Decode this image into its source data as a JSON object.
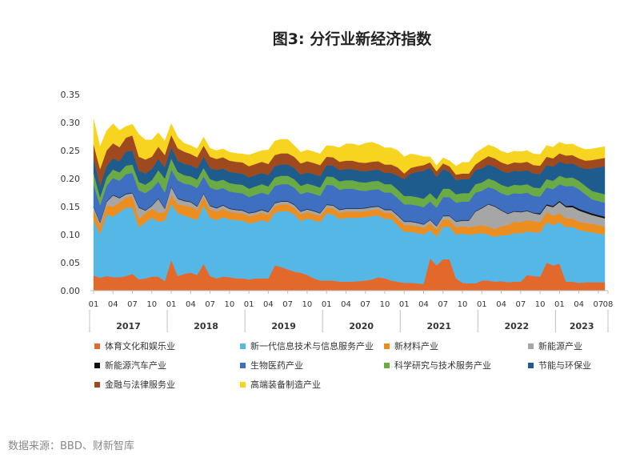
{
  "chart_data": {
    "type": "area",
    "stacked": true,
    "title": "图3: 分行业新经济指数",
    "ylim": [
      0,
      0.35
    ],
    "yticks": [
      "0.00",
      "0.05",
      "0.10",
      "0.15",
      "0.20",
      "0.25",
      "0.30",
      "0.35"
    ],
    "month_tick_labels": [
      "01",
      "04",
      "07",
      "10",
      "01",
      "04",
      "07",
      "10",
      "01",
      "04",
      "07",
      "10",
      "01",
      "04",
      "07",
      "10",
      "01",
      "04",
      "07",
      "10",
      "01",
      "04",
      "07",
      "10",
      "01",
      "04",
      "07",
      "08"
    ],
    "years": [
      "2017",
      "2018",
      "2019",
      "2020",
      "2021",
      "2022",
      "2023"
    ],
    "x_start": "2017-01",
    "x_end": "2023-08",
    "series": [
      {
        "name": "体育文化和娱乐业",
        "color": "#e2682b",
        "values": [
          0.027,
          0.023,
          0.026,
          0.024,
          0.024,
          0.026,
          0.03,
          0.02,
          0.022,
          0.025,
          0.025,
          0.017,
          0.055,
          0.026,
          0.03,
          0.032,
          0.028,
          0.048,
          0.026,
          0.022,
          0.025,
          0.024,
          0.022,
          0.022,
          0.02,
          0.022,
          0.022,
          0.022,
          0.045,
          0.042,
          0.038,
          0.034,
          0.032,
          0.028,
          0.022,
          0.018,
          0.018,
          0.018,
          0.016,
          0.016,
          0.016,
          0.017,
          0.018,
          0.02,
          0.024,
          0.022,
          0.018,
          0.016,
          0.014,
          0.014,
          0.013,
          0.012,
          0.058,
          0.045,
          0.056,
          0.056,
          0.022,
          0.014,
          0.013,
          0.013,
          0.018,
          0.018,
          0.016,
          0.017,
          0.015,
          0.016,
          0.016,
          0.028,
          0.026,
          0.025,
          0.05,
          0.045,
          0.048,
          0.016,
          0.016,
          0.014,
          0.015,
          0.015,
          0.015,
          0.015
        ]
      },
      {
        "name": "新一代信息技术与信息服务产业",
        "color": "#55b7e6",
        "values": [
          0.098,
          0.078,
          0.11,
          0.108,
          0.116,
          0.122,
          0.118,
          0.093,
          0.1,
          0.105,
          0.098,
          0.108,
          0.1,
          0.112,
          0.104,
          0.098,
          0.098,
          0.104,
          0.104,
          0.104,
          0.106,
          0.103,
          0.104,
          0.103,
          0.1,
          0.1,
          0.104,
          0.1,
          0.094,
          0.1,
          0.104,
          0.102,
          0.092,
          0.101,
          0.104,
          0.104,
          0.12,
          0.118,
          0.112,
          0.114,
          0.114,
          0.113,
          0.113,
          0.113,
          0.11,
          0.106,
          0.11,
          0.1,
          0.091,
          0.091,
          0.09,
          0.088,
          0.05,
          0.051,
          0.058,
          0.058,
          0.078,
          0.088,
          0.087,
          0.088,
          0.085,
          0.082,
          0.08,
          0.082,
          0.084,
          0.087,
          0.086,
          0.078,
          0.078,
          0.079,
          0.072,
          0.072,
          0.074,
          0.097,
          0.098,
          0.094,
          0.091,
          0.089,
          0.087,
          0.085
        ]
      },
      {
        "name": "新材料产业",
        "color": "#ec8e1f",
        "values": [
          0.018,
          0.015,
          0.016,
          0.018,
          0.017,
          0.018,
          0.02,
          0.015,
          0.016,
          0.016,
          0.016,
          0.015,
          0.015,
          0.016,
          0.018,
          0.02,
          0.018,
          0.015,
          0.015,
          0.015,
          0.015,
          0.014,
          0.013,
          0.013,
          0.013,
          0.013,
          0.013,
          0.013,
          0.012,
          0.012,
          0.012,
          0.012,
          0.012,
          0.011,
          0.011,
          0.011,
          0.01,
          0.011,
          0.011,
          0.011,
          0.011,
          0.011,
          0.011,
          0.011,
          0.011,
          0.011,
          0.011,
          0.012,
          0.012,
          0.012,
          0.012,
          0.012,
          0.012,
          0.013,
          0.013,
          0.013,
          0.013,
          0.013,
          0.013,
          0.014,
          0.014,
          0.014,
          0.014,
          0.016,
          0.018,
          0.02,
          0.02,
          0.02,
          0.02,
          0.018,
          0.018,
          0.017,
          0.016,
          0.016,
          0.015,
          0.015,
          0.015,
          0.015,
          0.015,
          0.014
        ]
      },
      {
        "name": "新能源产业",
        "color": "#a6a6a6",
        "values": [
          0.006,
          0.005,
          0.006,
          0.02,
          0.008,
          0.006,
          0.006,
          0.02,
          0.005,
          0.005,
          0.025,
          0.006,
          0.015,
          0.01,
          0.008,
          0.008,
          0.006,
          0.006,
          0.006,
          0.006,
          0.006,
          0.005,
          0.005,
          0.005,
          0.005,
          0.005,
          0.005,
          0.005,
          0.005,
          0.005,
          0.005,
          0.005,
          0.005,
          0.005,
          0.005,
          0.005,
          0.005,
          0.005,
          0.005,
          0.005,
          0.005,
          0.005,
          0.005,
          0.005,
          0.005,
          0.005,
          0.005,
          0.006,
          0.006,
          0.006,
          0.006,
          0.006,
          0.006,
          0.006,
          0.006,
          0.006,
          0.01,
          0.01,
          0.012,
          0.026,
          0.03,
          0.04,
          0.04,
          0.028,
          0.02,
          0.018,
          0.018,
          0.016,
          0.014,
          0.014,
          0.012,
          0.015,
          0.02,
          0.02,
          0.02,
          0.02,
          0.018,
          0.016,
          0.015,
          0.015
        ]
      },
      {
        "name": "新能源汽车产业",
        "color": "#111111",
        "values": [
          0.001,
          0.001,
          0.001,
          0.001,
          0.001,
          0.001,
          0.001,
          0.001,
          0.001,
          0.001,
          0.001,
          0.001,
          0.001,
          0.001,
          0.001,
          0.001,
          0.001,
          0.001,
          0.001,
          0.001,
          0.001,
          0.001,
          0.001,
          0.001,
          0.001,
          0.001,
          0.001,
          0.001,
          0.001,
          0.001,
          0.001,
          0.001,
          0.001,
          0.001,
          0.001,
          0.001,
          0.001,
          0.001,
          0.001,
          0.001,
          0.001,
          0.001,
          0.001,
          0.001,
          0.001,
          0.001,
          0.001,
          0.001,
          0.001,
          0.001,
          0.001,
          0.001,
          0.001,
          0.001,
          0.001,
          0.001,
          0.001,
          0.001,
          0.001,
          0.001,
          0.001,
          0.001,
          0.001,
          0.001,
          0.001,
          0.001,
          0.001,
          0.001,
          0.001,
          0.002,
          0.002,
          0.002,
          0.002,
          0.002,
          0.003,
          0.003,
          0.003,
          0.003,
          0.003,
          0.003
        ]
      },
      {
        "name": "生物医药产业",
        "color": "#3f6fc1",
        "values": [
          0.04,
          0.03,
          0.028,
          0.03,
          0.03,
          0.035,
          0.035,
          0.03,
          0.03,
          0.03,
          0.03,
          0.028,
          0.03,
          0.032,
          0.03,
          0.03,
          0.032,
          0.03,
          0.032,
          0.032,
          0.03,
          0.03,
          0.03,
          0.03,
          0.028,
          0.03,
          0.03,
          0.03,
          0.03,
          0.03,
          0.03,
          0.03,
          0.03,
          0.03,
          0.03,
          0.03,
          0.035,
          0.035,
          0.035,
          0.035,
          0.035,
          0.032,
          0.03,
          0.03,
          0.03,
          0.03,
          0.03,
          0.03,
          0.03,
          0.03,
          0.03,
          0.03,
          0.032,
          0.032,
          0.033,
          0.033,
          0.033,
          0.033,
          0.033,
          0.033,
          0.03,
          0.03,
          0.03,
          0.03,
          0.032,
          0.032,
          0.032,
          0.032,
          0.03,
          0.03,
          0.03,
          0.03,
          0.03,
          0.035,
          0.035,
          0.035,
          0.03,
          0.025,
          0.025,
          0.025
        ]
      },
      {
        "name": "科学研究与技术服务产业",
        "color": "#6aab45",
        "values": [
          0.02,
          0.015,
          0.015,
          0.015,
          0.015,
          0.015,
          0.015,
          0.015,
          0.015,
          0.015,
          0.02,
          0.025,
          0.02,
          0.015,
          0.015,
          0.015,
          0.015,
          0.015,
          0.015,
          0.015,
          0.015,
          0.015,
          0.015,
          0.015,
          0.015,
          0.015,
          0.015,
          0.015,
          0.015,
          0.015,
          0.015,
          0.015,
          0.015,
          0.015,
          0.015,
          0.015,
          0.015,
          0.015,
          0.015,
          0.015,
          0.015,
          0.015,
          0.015,
          0.015,
          0.015,
          0.015,
          0.015,
          0.015,
          0.015,
          0.015,
          0.015,
          0.015,
          0.015,
          0.015,
          0.015,
          0.015,
          0.015,
          0.015,
          0.015,
          0.015,
          0.015,
          0.015,
          0.015,
          0.015,
          0.015,
          0.015,
          0.015,
          0.015,
          0.015,
          0.015,
          0.015,
          0.015,
          0.015,
          0.015,
          0.015,
          0.015,
          0.015,
          0.015,
          0.015,
          0.015
        ]
      },
      {
        "name": "节能与环保业",
        "color": "#1d5c8c",
        "values": [
          0.026,
          0.02,
          0.02,
          0.02,
          0.02,
          0.025,
          0.025,
          0.02,
          0.02,
          0.02,
          0.02,
          0.02,
          0.02,
          0.02,
          0.02,
          0.02,
          0.02,
          0.02,
          0.02,
          0.02,
          0.02,
          0.02,
          0.02,
          0.02,
          0.02,
          0.02,
          0.02,
          0.02,
          0.02,
          0.02,
          0.02,
          0.02,
          0.02,
          0.02,
          0.02,
          0.02,
          0.02,
          0.02,
          0.02,
          0.02,
          0.02,
          0.02,
          0.02,
          0.02,
          0.02,
          0.02,
          0.02,
          0.025,
          0.03,
          0.04,
          0.045,
          0.05,
          0.045,
          0.04,
          0.035,
          0.03,
          0.025,
          0.025,
          0.025,
          0.025,
          0.025,
          0.025,
          0.025,
          0.025,
          0.025,
          0.025,
          0.025,
          0.025,
          0.025,
          0.025,
          0.025,
          0.025,
          0.025,
          0.025,
          0.025,
          0.025,
          0.03,
          0.04,
          0.045,
          0.05
        ]
      },
      {
        "name": "金融与法律服务业",
        "color": "#9e4a1e",
        "values": [
          0.025,
          0.03,
          0.028,
          0.027,
          0.025,
          0.025,
          0.027,
          0.025,
          0.025,
          0.022,
          0.022,
          0.022,
          0.022,
          0.022,
          0.022,
          0.02,
          0.02,
          0.02,
          0.02,
          0.02,
          0.02,
          0.02,
          0.02,
          0.02,
          0.02,
          0.02,
          0.02,
          0.02,
          0.02,
          0.02,
          0.02,
          0.02,
          0.02,
          0.02,
          0.02,
          0.02,
          0.015,
          0.015,
          0.015,
          0.015,
          0.015,
          0.015,
          0.015,
          0.015,
          0.015,
          0.015,
          0.015,
          0.015,
          0.01,
          0.01,
          0.01,
          0.01,
          0.01,
          0.01,
          0.01,
          0.01,
          0.01,
          0.01,
          0.01,
          0.01,
          0.015,
          0.015,
          0.015,
          0.015,
          0.015,
          0.015,
          0.015,
          0.015,
          0.015,
          0.015,
          0.015,
          0.015,
          0.015,
          0.015,
          0.015,
          0.015,
          0.015,
          0.015,
          0.015,
          0.015
        ]
      },
      {
        "name": "高端装备制造产业",
        "color": "#f7d41f",
        "values": [
          0.045,
          0.04,
          0.035,
          0.035,
          0.03,
          0.02,
          0.02,
          0.04,
          0.035,
          0.03,
          0.025,
          0.025,
          0.02,
          0.02,
          0.015,
          0.015,
          0.015,
          0.015,
          0.015,
          0.015,
          0.015,
          0.015,
          0.015,
          0.015,
          0.02,
          0.02,
          0.02,
          0.025,
          0.025,
          0.025,
          0.025,
          0.02,
          0.02,
          0.02,
          0.02,
          0.02,
          0.02,
          0.02,
          0.025,
          0.03,
          0.03,
          0.03,
          0.035,
          0.035,
          0.03,
          0.03,
          0.03,
          0.03,
          0.03,
          0.025,
          0.02,
          0.015,
          0.01,
          0.01,
          0.01,
          0.01,
          0.015,
          0.02,
          0.02,
          0.02,
          0.02,
          0.02,
          0.02,
          0.02,
          0.02,
          0.02,
          0.02,
          0.02,
          0.02,
          0.02,
          0.02,
          0.02,
          0.02,
          0.02,
          0.02,
          0.02,
          0.02,
          0.02,
          0.02,
          0.02
        ]
      }
    ]
  },
  "source_note": "数据来源：BBD、财新智库"
}
